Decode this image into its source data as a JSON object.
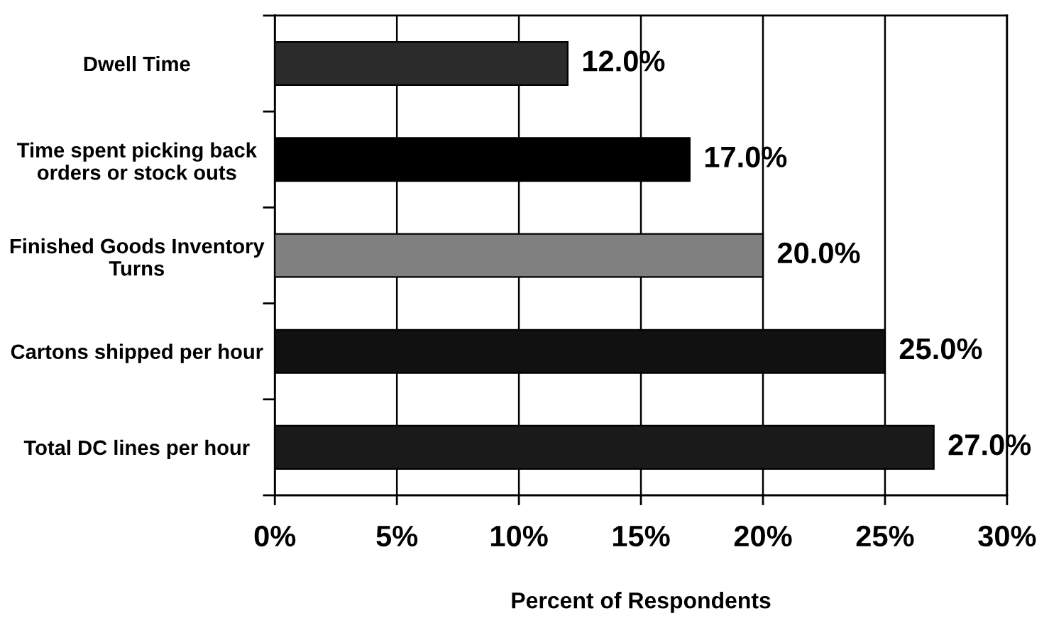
{
  "chart_data": {
    "type": "bar",
    "orientation": "horizontal",
    "categories": [
      "Dwell Time",
      "Time spent picking back\norders or stock outs",
      "Finished Goods Inventory\nTurns",
      "Cartons shipped per hour",
      "Total DC lines per hour"
    ],
    "values": [
      12,
      17,
      20,
      25,
      27
    ],
    "colors": [
      "#2b2b2b",
      "#000000",
      "#808080",
      "#111111",
      "#1a1a1a"
    ],
    "value_labels": [
      "12.0%",
      "17.0%",
      "20.0%",
      "25.0%",
      "27.0%"
    ],
    "xlabel": "Percent of Respondents",
    "xlim": [
      0,
      30
    ],
    "xticks": [
      {
        "value": 0,
        "label": "0%"
      },
      {
        "value": 5,
        "label": "5%"
      },
      {
        "value": 10,
        "label": "10%"
      },
      {
        "value": 15,
        "label": "15%"
      },
      {
        "value": 20,
        "label": "20%"
      },
      {
        "value": 25,
        "label": "25%"
      },
      {
        "value": 30,
        "label": "30%"
      }
    ],
    "grid": "x"
  }
}
